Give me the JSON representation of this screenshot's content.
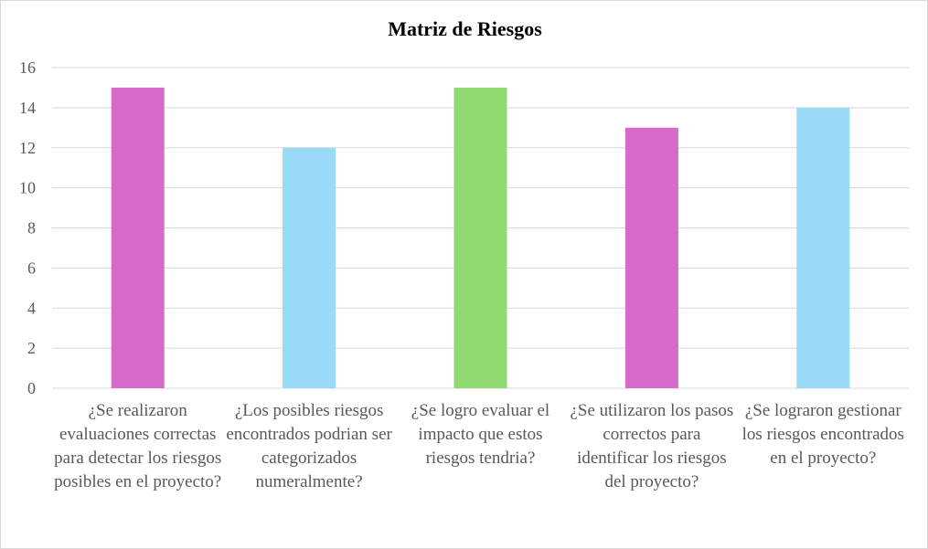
{
  "chart_data": {
    "type": "bar",
    "title": "Matriz de Riesgos",
    "xlabel": "",
    "ylabel": "",
    "ylim": [
      0,
      16
    ],
    "yticks": [
      0,
      2,
      4,
      6,
      8,
      10,
      12,
      14,
      16
    ],
    "grid": true,
    "legend": "none",
    "categories": [
      "¿Se realizaron evaluaciones correctas para detectar los riesgos posibles en el proyecto?",
      "¿Los posibles riesgos encontrados podrian ser categorizados numeralmente?",
      "¿Se logro evaluar el impacto que estos riesgos tendria?",
      "¿Se utilizaron los pasos correctos para identificar los riesgos del proyecto?",
      "¿Se lograron gestionar los riesgos encontrados en el proyecto?"
    ],
    "values": [
      15,
      12,
      15,
      13,
      14
    ],
    "bar_colors": [
      "#d76bca",
      "#99daf6",
      "#8ed970",
      "#d76bca",
      "#99daf6"
    ],
    "gridline_color": "#d9d9d9",
    "axis_color": "#d9d9d9"
  }
}
